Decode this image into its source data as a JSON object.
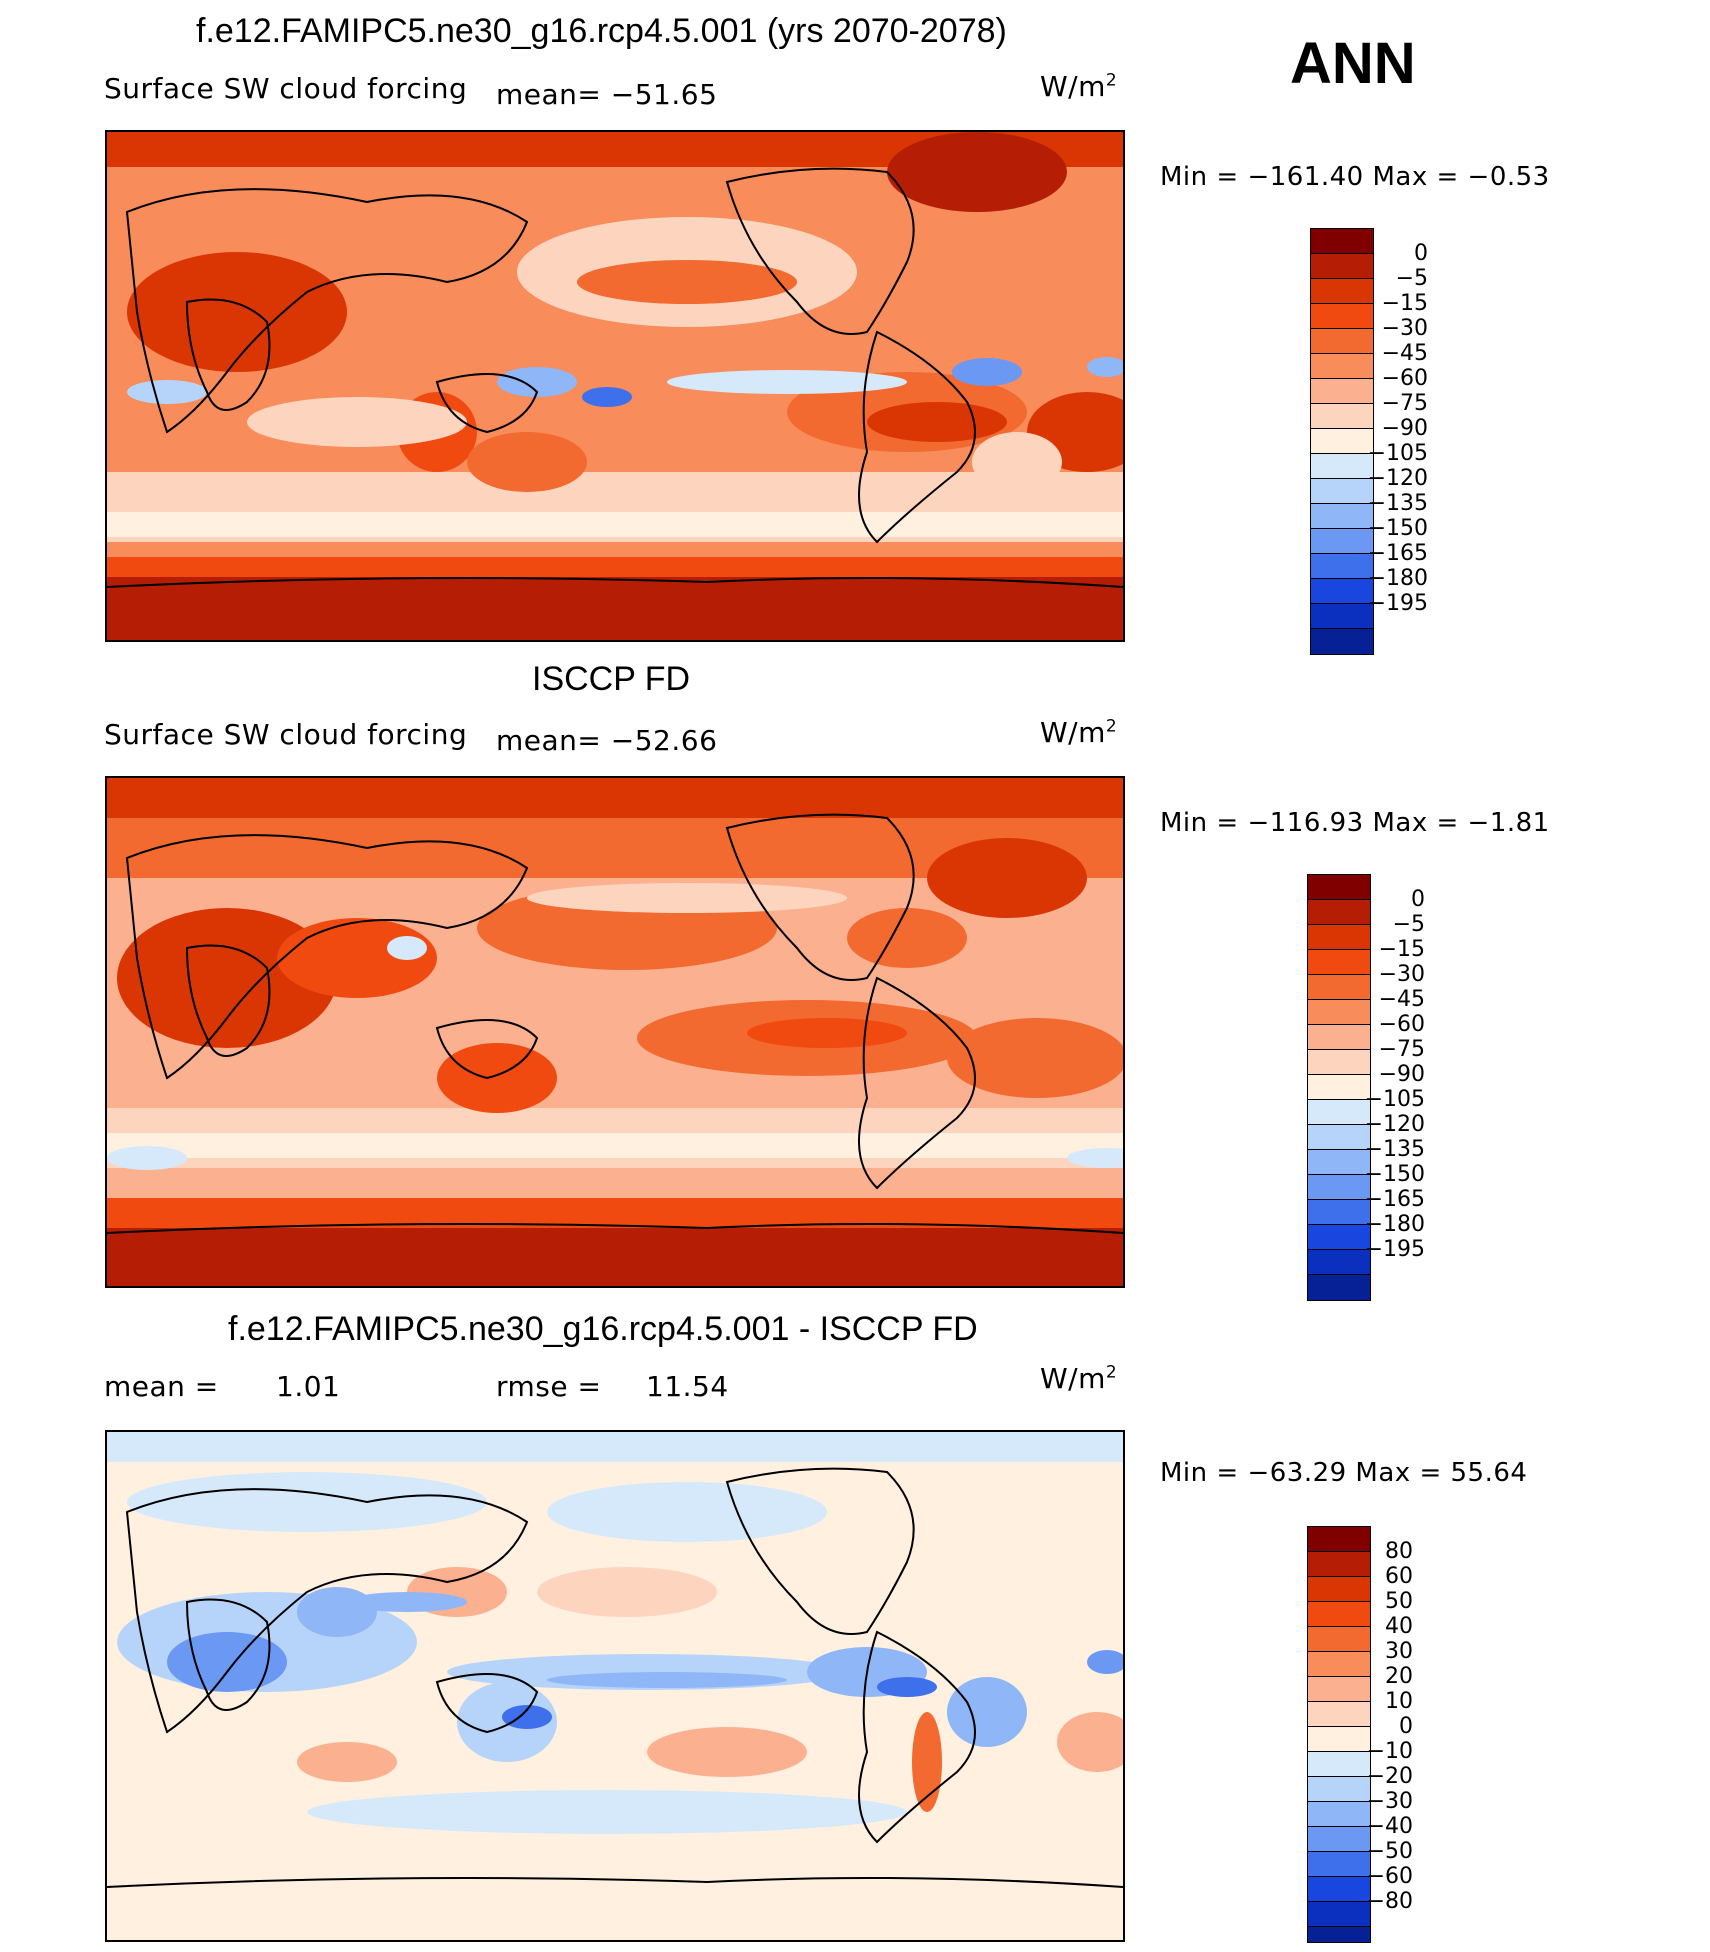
{
  "season": "ANN",
  "units": "W/m",
  "units_sup": "2",
  "panels": [
    {
      "title": "f.e12.FAMIPC5.ne30_g16.rcp4.5.001 (yrs 2070-2078)",
      "variable": "Surface SW cloud forcing",
      "mean_text": "mean=  −51.65",
      "minmax_text": "Min  =  −161.40  Max  =   −0.53",
      "colorbar_labels": [
        "0",
        "−5",
        "−15",
        "−30",
        "−45",
        "−60",
        "−75",
        "−90",
        "−105",
        "−120",
        "−135",
        "−150",
        "−165",
        "−180",
        "−195"
      ]
    },
    {
      "title": "ISCCP FD",
      "variable": "Surface SW cloud forcing",
      "mean_text": "mean=  −52.66",
      "minmax_text": "Min  =  −116.93  Max  =   −1.81",
      "colorbar_labels": [
        "0",
        "−5",
        "−15",
        "−30",
        "−45",
        "−60",
        "−75",
        "−90",
        "−105",
        "−120",
        "−135",
        "−150",
        "−165",
        "−180",
        "−195"
      ]
    },
    {
      "title": "f.e12.FAMIPC5.ne30_g16.rcp4.5.001 - ISCCP FD",
      "mean_label": "mean  =",
      "mean_value": "1.01",
      "rmse_label": "rmse  =",
      "rmse_value": "11.54",
      "minmax_text": "Min  =  −63.29  Max  =   55.64",
      "colorbar_labels": [
        "80",
        "60",
        "50",
        "40",
        "30",
        "20",
        "10",
        "0",
        "−10",
        "−20",
        "−30",
        "−40",
        "−50",
        "−60",
        "−80"
      ]
    }
  ],
  "colors": {
    "abs_scale": [
      "#800000",
      "#b51d04",
      "#d93604",
      "#f14a10",
      "#f26a30",
      "#f88c5a",
      "#fbb190",
      "#fdd5bf",
      "#fff0e0",
      "#d5e9fa",
      "#b6d4fa",
      "#8fb6f7",
      "#6a98f2",
      "#3f70eb",
      "#1a46e0",
      "#0b2fbf",
      "#062096",
      "#030d6b"
    ],
    "diff_scale": [
      "#800000",
      "#b51d04",
      "#d93604",
      "#f14a10",
      "#f26a30",
      "#f88c5a",
      "#fbb190",
      "#fdd5bf",
      "#fff0e0",
      "#d5e9fa",
      "#b6d4fa",
      "#8fb6f7",
      "#6a98f2",
      "#3f70eb",
      "#1a46e0",
      "#0b2fbf",
      "#062096",
      "#030d6b"
    ]
  }
}
